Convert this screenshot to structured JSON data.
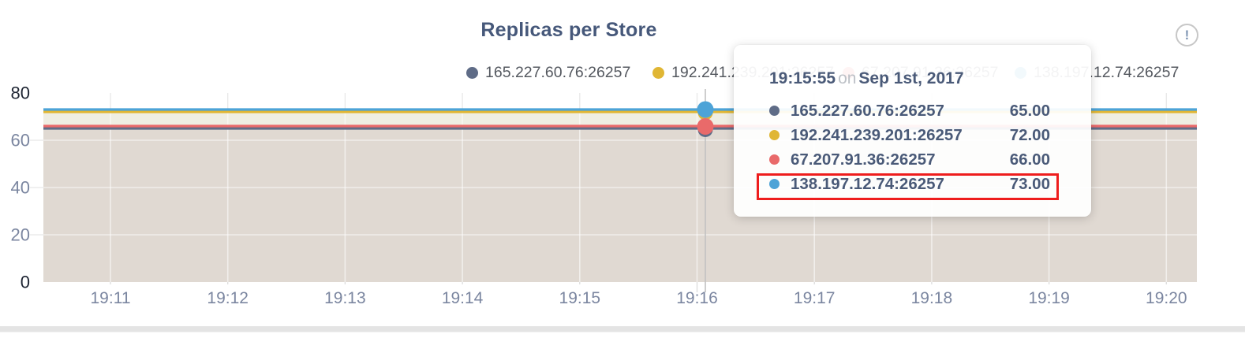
{
  "chart": {
    "title": "Replicas per Store",
    "info_icon": "!",
    "colors": {
      "title": "#46587a",
      "series_slate": "#5f6c87",
      "series_yellow": "#e0b634",
      "series_red": "#e96a6a",
      "series_blue": "#4da3d7",
      "fill_light": "#efeee3",
      "fill_dark": "#e0d9d2",
      "grid_on_white": "#e8e8e8",
      "grid_stub": "#dcdcdc",
      "grid_on_fill": "rgba(255,255,255,0.55)",
      "hover_guideline": "#c2c2c2",
      "axis_label_dark": "#1d2432",
      "axis_label_light": "#7b86a0",
      "legend_text": "#54585f",
      "tooltip_text": "#4a5a78",
      "tooltip_muted": "#bdc1c7",
      "highlight_red": "#ee1d1d"
    }
  },
  "legend": {
    "items": [
      {
        "label": "165.227.60.76:26257",
        "color": "#5f6c87"
      },
      {
        "label": "192.241.239.201:26257",
        "color": "#e0b634"
      },
      {
        "label": "67.207.91.36:26257",
        "color": "#e96a6a"
      },
      {
        "label": "138.197.12.74:26257",
        "color": "#4da3d7"
      }
    ]
  },
  "tooltip": {
    "time": "19:15:55",
    "on_word": "on",
    "date": "Sep 1st, 2017",
    "rows": [
      {
        "label": "165.227.60.76:26257",
        "value": "65.00",
        "color": "#5f6c87",
        "highlighted": false
      },
      {
        "label": "192.241.239.201:26257",
        "value": "72.00",
        "color": "#e0b634",
        "highlighted": false
      },
      {
        "label": "67.207.91.36:26257",
        "value": "66.00",
        "color": "#e96a6a",
        "highlighted": false
      },
      {
        "label": "138.197.12.74:26257",
        "value": "73.00",
        "color": "#4da3d7",
        "highlighted": true
      }
    ]
  },
  "chart_data": {
    "type": "line",
    "title": "Replicas per Store",
    "xlabel": "",
    "ylabel": "",
    "x": [
      "19:11",
      "19:12",
      "19:13",
      "19:14",
      "19:15",
      "19:16",
      "19:17",
      "19:18",
      "19:19",
      "19:20"
    ],
    "y_ticks": [
      0,
      20,
      40,
      60,
      80
    ],
    "ylim": [
      0,
      80
    ],
    "grid": true,
    "legend_position": "top",
    "area_fill": true,
    "series": [
      {
        "name": "165.227.60.76:26257",
        "color": "#5f6c87",
        "values": [
          65,
          65,
          65,
          65,
          65,
          65,
          65,
          65,
          65,
          65
        ]
      },
      {
        "name": "192.241.239.201:26257",
        "color": "#e0b634",
        "values": [
          72,
          72,
          72,
          72,
          72,
          72,
          72,
          72,
          72,
          72
        ]
      },
      {
        "name": "67.207.91.36:26257",
        "color": "#e96a6a",
        "values": [
          66,
          66,
          66,
          66,
          66,
          66,
          66,
          66,
          66,
          66
        ]
      },
      {
        "name": "138.197.12.74:26257",
        "color": "#4da3d7",
        "values": [
          73,
          73,
          73,
          73,
          73,
          73,
          73,
          73,
          73,
          73
        ]
      }
    ],
    "hover": {
      "time": "19:15:55",
      "date": "Sep 1st, 2017",
      "values": {
        "165.227.60.76:26257": 65,
        "192.241.239.201:26257": 72,
        "67.207.91.36:26257": 66,
        "138.197.12.74:26257": 73
      }
    }
  }
}
